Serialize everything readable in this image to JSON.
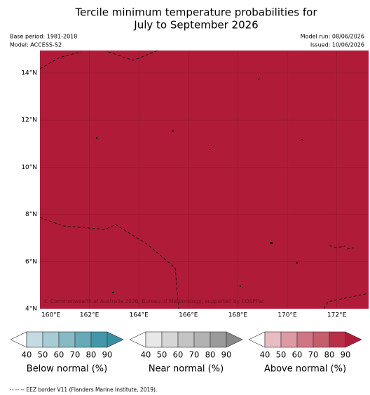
{
  "header": {
    "title": [
      "Tercile minimum temperature probabilities for",
      "July to September 2026"
    ],
    "left": [
      "Base period: 1981-2018",
      "Model: ACCESS-S2"
    ],
    "right": [
      "Model run: 08/06/2026",
      "Issued: 10/06/2026"
    ]
  },
  "map": {
    "fill": "#b01c38",
    "lat_labels": [
      "14°N",
      "12°N",
      "10°N",
      "8°N",
      "6°N",
      "4°N"
    ],
    "lon_labels": [
      "160°E",
      "162°E",
      "164°E",
      "166°E",
      "168°E",
      "170°E",
      "172°E"
    ],
    "credit": "© Commonwealth of Australia 2026, Bureau of Meteorology, supported by COSPPac"
  },
  "legend": [
    {
      "title": "Below normal (%)",
      "ticks": [
        40,
        50,
        60,
        70,
        80,
        90
      ],
      "colors": [
        "#c4dbe1",
        "#a6ccd4",
        "#87bac6",
        "#68a9b8",
        "#4497ab"
      ],
      "arrow": "#3a8ea4"
    },
    {
      "title": "Near normal (%)",
      "ticks": [
        40,
        50,
        60,
        70,
        80,
        90
      ],
      "colors": [
        "#e8e8e8",
        "#d6d6d6",
        "#c4c4c4",
        "#b2b2b2",
        "#9a9a9a"
      ],
      "arrow": "#888888"
    },
    {
      "title": "Above normal (%)",
      "ticks": [
        40,
        50,
        60,
        70,
        80,
        90
      ],
      "colors": [
        "#e8bcc2",
        "#dc9aa3",
        "#cf7583",
        "#c45d6c",
        "#b82f48"
      ],
      "arrow": "#b01c38"
    }
  ],
  "footnote": "-- -- -- EEZ border V11 (Flanders Marine Institute, 2019)."
}
